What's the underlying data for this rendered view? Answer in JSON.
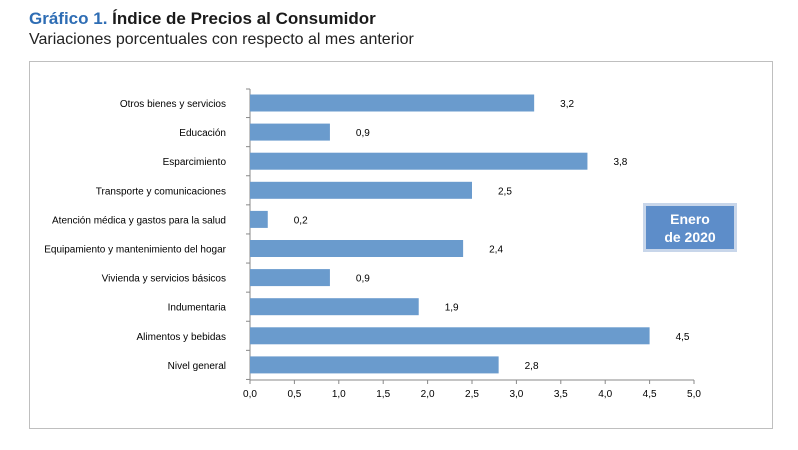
{
  "header": {
    "title_prefix": "Gráfico 1.",
    "title_main": "Índice de Precios al Consumidor",
    "subtitle": "Variaciones porcentuales con respecto al mes anterior"
  },
  "badge": {
    "line1": "Enero",
    "line2": "de 2020"
  },
  "chart_data": {
    "type": "bar",
    "orientation": "horizontal",
    "title": "Índice de Precios al Consumidor",
    "subtitle": "Variaciones porcentuales con respecto al mes anterior",
    "categories": [
      "Otros bienes y servicios",
      "Educación",
      "Esparcimiento",
      "Transporte y comunicaciones",
      "Atención médica y gastos para la salud",
      "Equipamiento y  mantenimiento del hogar",
      "Vivienda y servicios básicos",
      "Indumentaria",
      "Alimentos y bebidas",
      "Nivel  general"
    ],
    "values": [
      3.2,
      0.9,
      3.8,
      2.5,
      0.2,
      2.4,
      0.9,
      1.9,
      4.5,
      2.8
    ],
    "value_labels": [
      "3,2",
      "0,9",
      "3,8",
      "2,5",
      "0,2",
      "2,4",
      "0,9",
      "1,9",
      "4,5",
      "2,8"
    ],
    "xlim": [
      0,
      5
    ],
    "xticks": [
      "0,0",
      "0,5",
      "1,0",
      "1,5",
      "2,0",
      "2,5",
      "3,0",
      "3,5",
      "4,0",
      "4,5",
      "5,0"
    ],
    "xlabel": "",
    "ylabel": "",
    "bar_color": "#6a9bcd",
    "grid": false
  }
}
